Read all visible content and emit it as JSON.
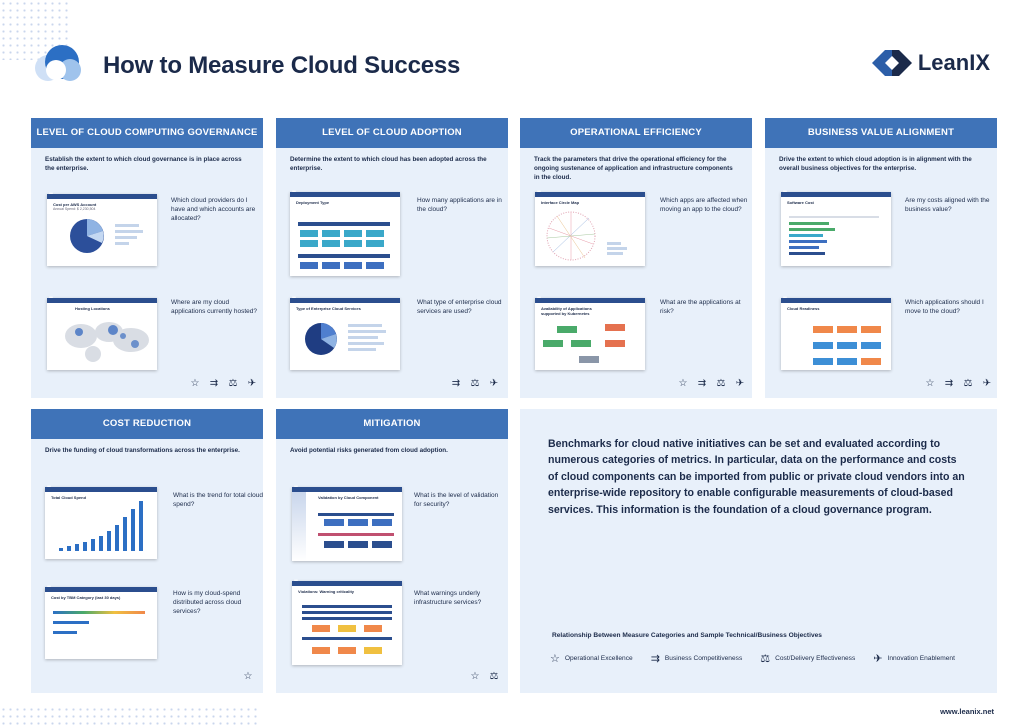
{
  "header": {
    "title": "How to Measure Cloud Success",
    "brand": "LeanIX",
    "website": "www.leanix.net"
  },
  "colors": {
    "header_blue": "#3f73b8",
    "panel_bg": "#e8f0fa",
    "navy": "#1b2a4a",
    "orange": "#f0884a",
    "teal": "#3aa8c9"
  },
  "panels": [
    {
      "title": "LEVEL OF CLOUD COMPUTING GOVERNANCE",
      "desc": "Establish the extent to which cloud governance is in place across the enterprise.",
      "items": [
        {
          "thumb_title": "Cost per AWS Account",
          "thumb_sub": "Annual Spend: $ 2,230,504",
          "question": "Which cloud providers do I have and which accounts are allocated?"
        },
        {
          "thumb_title": "Hosting Locations",
          "thumb_sub": "",
          "question": "Where are my cloud applications currently hosted?"
        }
      ],
      "icons": [
        "star-icon",
        "arrows-icon",
        "cost-icon",
        "rocket-icon"
      ]
    },
    {
      "title": "LEVEL OF CLOUD ADOPTION",
      "desc": "Determine the extent to which cloud has been adopted across the enterprise.",
      "items": [
        {
          "thumb_title": "Deployment Type",
          "thumb_sub": "",
          "question": "How many applications are in the cloud?"
        },
        {
          "thumb_title": "Type of Enterprise Cloud Services",
          "thumb_sub": "",
          "question": "What type of enterprise cloud services are used?"
        }
      ],
      "icons": [
        "arrows-icon",
        "cost-icon",
        "rocket-icon"
      ]
    },
    {
      "title": "OPERATIONAL EFFICIENCY",
      "desc": "Track the parameters that drive the operational efficiency for the ongoing sustenance of application and infrastructure components in the cloud.",
      "items": [
        {
          "thumb_title": "Interface Circle Map",
          "thumb_sub": "",
          "question": "Which apps are affected when moving an app to the cloud?"
        },
        {
          "thumb_title": "Availability of Applications supported by Kubernetes",
          "thumb_sub": "",
          "question": "What are the applications at risk?"
        }
      ],
      "icons": [
        "star-icon",
        "arrows-icon",
        "cost-icon",
        "rocket-icon"
      ]
    },
    {
      "title": "BUSINESS VALUE ALIGNMENT",
      "desc": "Drive the extent to which cloud adoption is in alignment with the overall business objectives for the enterprise.",
      "items": [
        {
          "thumb_title": "Software Cost",
          "thumb_sub": "",
          "question": "Are my costs aligned with the business value?"
        },
        {
          "thumb_title": "Cloud Readiness",
          "thumb_sub": "",
          "question": "Which applications should I move to the cloud?"
        }
      ],
      "icons": [
        "star-icon",
        "arrows-icon",
        "cost-icon",
        "rocket-icon"
      ]
    },
    {
      "title": "COST REDUCTION",
      "desc": "Drive the funding of cloud transformations across the enterprise.",
      "items": [
        {
          "thumb_title": "Total Cloud Spend",
          "thumb_sub": "",
          "question": "What is the trend for total cloud spend?"
        },
        {
          "thumb_title": "Cost by TBM Category (last 30 days)",
          "thumb_sub": "",
          "question": "How is my cloud-spend distributed across cloud services?"
        }
      ],
      "icons": [
        "star-icon"
      ]
    },
    {
      "title": "MITIGATION",
      "desc": "Avoid potential risks generated from cloud adoption.",
      "items": [
        {
          "thumb_title": "Validation by Cloud Component",
          "thumb_sub": "",
          "question": "What is the level of validation for security?"
        },
        {
          "thumb_title": "Violations: Warning criticality",
          "thumb_sub": "",
          "question": "What warnings underly infrastructure services?"
        }
      ],
      "icons": [
        "star-icon",
        "cost-icon"
      ]
    }
  ],
  "summary": "Benchmarks for cloud native initiatives can be set and evaluated according to numerous categories of metrics. In particular, data on the performance and costs of cloud components can be imported from public or private cloud vendors into an enterprise-wide repository to enable configurable measurements of cloud-based services. This information is the foundation of a cloud governance program.",
  "legend": {
    "title": "Relationship Between Measure Categories and Sample Technical/Business Objectives",
    "items": [
      {
        "icon": "star-icon",
        "label": "Operational Excellence"
      },
      {
        "icon": "arrows-icon",
        "label": "Business Competitiveness"
      },
      {
        "icon": "cost-icon",
        "label": "Cost/Delivery Effectiveness"
      },
      {
        "icon": "rocket-icon",
        "label": "Innovation Enablement"
      }
    ]
  }
}
